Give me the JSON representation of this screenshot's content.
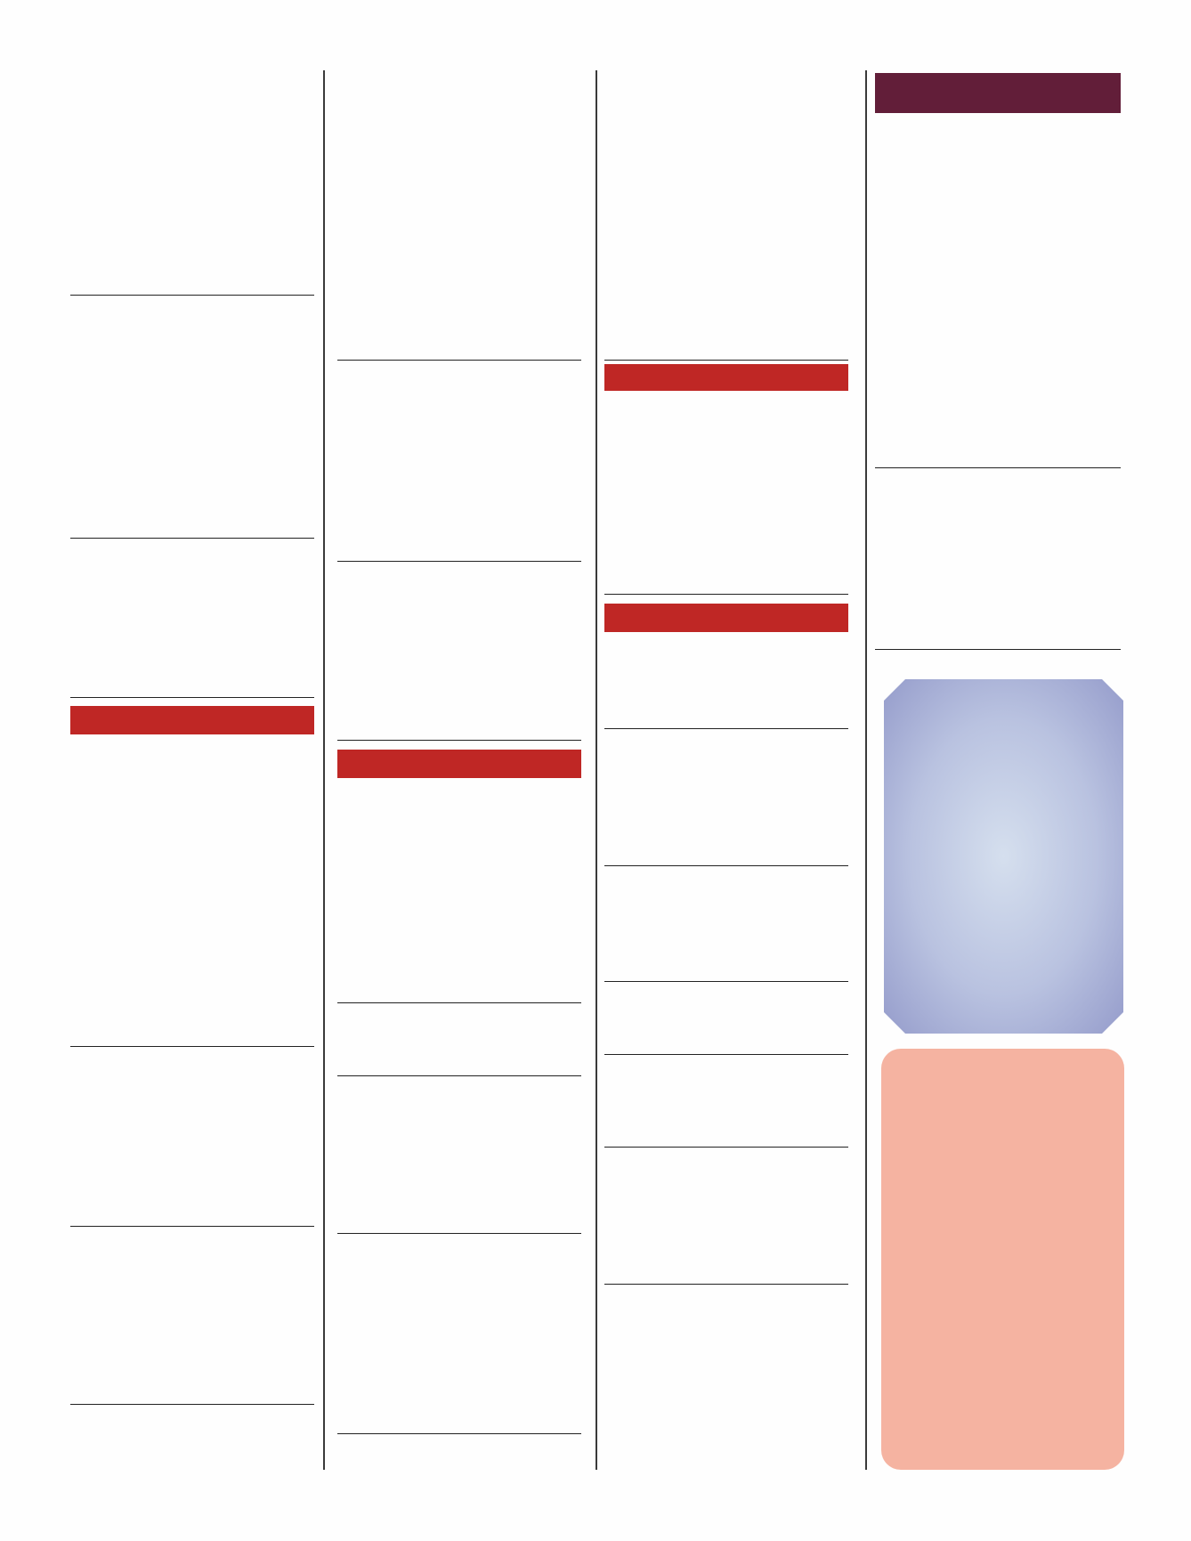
{
  "colors": {
    "section_header_red": "#bf2725",
    "header_maroon": "#621e39",
    "rule": "#222222",
    "column_divider": "#3a3a3a",
    "blue_panel_center": "#d5dfee",
    "blue_panel_edge": "#959ccb",
    "pink_panel": "#f5b3a1"
  }
}
